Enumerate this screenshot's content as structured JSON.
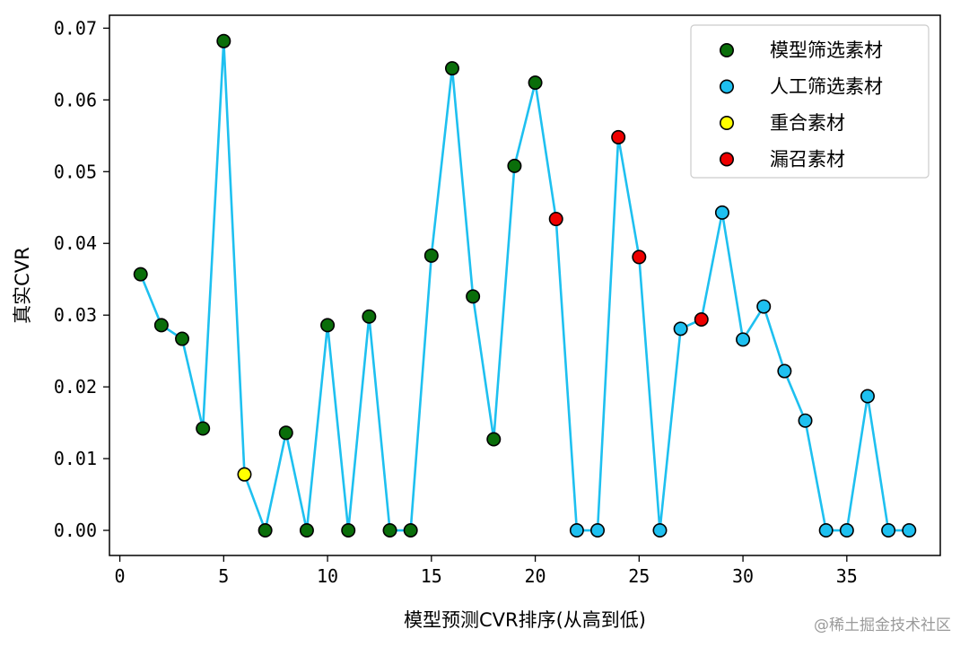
{
  "chart_data": {
    "type": "scatter",
    "xlabel": "模型预测CVR排序(从高到低)",
    "ylabel": "真实CVR",
    "xlim": [
      -0.5,
      39.5
    ],
    "ylim": [
      -0.0035,
      0.0718
    ],
    "x_ticks": [
      0,
      5,
      10,
      15,
      20,
      25,
      30,
      35
    ],
    "x_tick_labels": [
      "0",
      "5",
      "10",
      "15",
      "20",
      "25",
      "30",
      "35"
    ],
    "y_ticks": [
      0,
      0.01,
      0.02,
      0.03,
      0.04,
      0.05,
      0.06,
      0.07
    ],
    "y_tick_labels": [
      "0.00",
      "0.01",
      "0.02",
      "0.03",
      "0.04",
      "0.05",
      "0.06",
      "0.07"
    ],
    "grid": false,
    "legend_position": "top-right",
    "line_color": "#1ec0f0",
    "x": [
      1,
      2,
      3,
      4,
      5,
      6,
      7,
      8,
      9,
      10,
      11,
      12,
      13,
      14,
      15,
      16,
      17,
      18,
      19,
      20,
      21,
      22,
      23,
      24,
      25,
      26,
      27,
      28,
      29,
      30,
      31,
      32,
      33,
      34,
      35,
      36,
      37,
      38
    ],
    "y": [
      0.0357,
      0.0286,
      0.0267,
      0.0142,
      0.0682,
      0.0078,
      0.0,
      0.0136,
      0.0,
      0.0286,
      0.0,
      0.0298,
      0.0,
      0.0,
      0.0383,
      0.0644,
      0.0326,
      0.0127,
      0.0508,
      0.0624,
      0.0434,
      0.0,
      0.0,
      0.0548,
      0.0381,
      0.0,
      0.0281,
      0.0294,
      0.0443,
      0.0266,
      0.0312,
      0.0222,
      0.0153,
      0.0,
      0.0,
      0.0187,
      0.0,
      0.0
    ],
    "point_group": [
      0,
      0,
      0,
      0,
      0,
      2,
      0,
      0,
      0,
      0,
      0,
      0,
      0,
      0,
      0,
      0,
      0,
      0,
      0,
      0,
      3,
      1,
      1,
      3,
      3,
      1,
      1,
      3,
      1,
      1,
      1,
      1,
      1,
      1,
      1,
      1,
      1,
      1
    ],
    "series": [
      {
        "name": "模型筛选素材",
        "color": "#0a6e0a"
      },
      {
        "name": "人工筛选素材",
        "color": "#1ec0f0"
      },
      {
        "name": "重合素材",
        "color": "#ffff00"
      },
      {
        "name": "漏召素材",
        "color": "#ee0000"
      }
    ]
  },
  "watermark": "@稀土掘金技术社区"
}
